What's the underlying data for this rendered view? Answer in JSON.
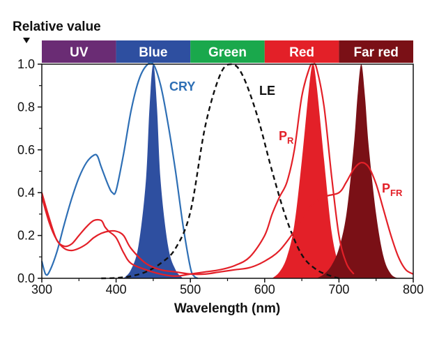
{
  "chart_data": {
    "type": "line",
    "ylabel": "Relative value",
    "xlabel": "Wavelength (nm)",
    "xlim": [
      300,
      800
    ],
    "ylim": [
      0,
      1.0
    ],
    "x_ticks": [
      300,
      400,
      500,
      600,
      700,
      800
    ],
    "y_ticks": [
      "0.0",
      "0.2",
      "0.4",
      "0.6",
      "0.8",
      "1.0"
    ],
    "grid": false,
    "bands": [
      {
        "label": "UV",
        "from": 300,
        "to": 400,
        "color": "#6a2c74"
      },
      {
        "label": "Blue",
        "from": 400,
        "to": 500,
        "color": "#2e4fa0"
      },
      {
        "label": "Green",
        "from": 500,
        "to": 600,
        "color": "#1aa84c"
      },
      {
        "label": "Red",
        "from": 600,
        "to": 700,
        "color": "#e32028"
      },
      {
        "label": "Far red",
        "from": 700,
        "to": 800,
        "color": "#7a1016"
      }
    ],
    "series": [
      {
        "name": "CRY",
        "color": "#2e6fb5",
        "style": "solid",
        "x": [
          300,
          305,
          310,
          320,
          330,
          340,
          350,
          360,
          370,
          375,
          380,
          390,
          395,
          400,
          410,
          420,
          430,
          440,
          450,
          460,
          470,
          480,
          490,
          500,
          505,
          510
        ],
        "y": [
          0.08,
          0.02,
          0.03,
          0.12,
          0.25,
          0.37,
          0.47,
          0.54,
          0.575,
          0.57,
          0.52,
          0.43,
          0.4,
          0.41,
          0.58,
          0.78,
          0.92,
          0.99,
          1.0,
          0.9,
          0.72,
          0.5,
          0.25,
          0.05,
          0.01,
          0.0
        ]
      },
      {
        "name": "LE",
        "color": "#111111",
        "style": "dashed",
        "x": [
          380,
          400,
          420,
          440,
          460,
          480,
          500,
          520,
          540,
          555,
          570,
          590,
          610,
          630,
          650,
          670,
          690,
          700
        ],
        "y": [
          0.0,
          0.002,
          0.01,
          0.03,
          0.07,
          0.14,
          0.31,
          0.71,
          0.95,
          1.0,
          0.95,
          0.76,
          0.5,
          0.27,
          0.11,
          0.04,
          0.01,
          0.0
        ]
      },
      {
        "name": "P_R",
        "label_main": "P",
        "label_sub": "R",
        "color": "#e32028",
        "style": "solid",
        "x": [
          300,
          310,
          320,
          330,
          340,
          350,
          360,
          370,
          380,
          385,
          390,
          400,
          410,
          420,
          440,
          460,
          480,
          500,
          520,
          540,
          560,
          580,
          600,
          610,
          620,
          630,
          640,
          650,
          660,
          665,
          670,
          680,
          690,
          700,
          710,
          720
        ],
        "y": [
          0.4,
          0.28,
          0.18,
          0.15,
          0.16,
          0.2,
          0.24,
          0.27,
          0.27,
          0.24,
          0.22,
          0.19,
          0.12,
          0.07,
          0.04,
          0.02,
          0.01,
          0.02,
          0.03,
          0.04,
          0.06,
          0.1,
          0.2,
          0.3,
          0.38,
          0.45,
          0.6,
          0.85,
          0.98,
          1.0,
          0.98,
          0.8,
          0.48,
          0.2,
          0.07,
          0.02
        ]
      },
      {
        "name": "P_FR",
        "label_main": "P",
        "label_sub": "FR",
        "color": "#e32028",
        "style": "solid",
        "x": [
          300,
          310,
          320,
          330,
          340,
          350,
          360,
          370,
          380,
          390,
          400,
          410,
          420,
          440,
          460,
          480,
          500,
          520,
          540,
          560,
          580,
          600,
          620,
          640,
          660,
          680,
          700,
          710,
          720,
          730,
          740,
          750,
          760,
          770,
          780,
          790,
          800
        ],
        "y": [
          0.38,
          0.26,
          0.18,
          0.14,
          0.13,
          0.14,
          0.16,
          0.19,
          0.21,
          0.22,
          0.22,
          0.2,
          0.14,
          0.07,
          0.04,
          0.03,
          0.02,
          0.02,
          0.03,
          0.04,
          0.05,
          0.08,
          0.13,
          0.22,
          0.33,
          0.38,
          0.4,
          0.45,
          0.51,
          0.54,
          0.52,
          0.44,
          0.32,
          0.2,
          0.1,
          0.04,
          0.02
        ]
      }
    ],
    "filled_peaks": [
      {
        "name": "blue-peak",
        "color": "#2e4fa0",
        "x": [
          410,
          420,
          430,
          440,
          445,
          450,
          455,
          460,
          470,
          480,
          490
        ],
        "y": [
          0.0,
          0.04,
          0.15,
          0.45,
          0.8,
          1.0,
          0.8,
          0.45,
          0.15,
          0.04,
          0.0
        ]
      },
      {
        "name": "red-peak",
        "color": "#e32028",
        "x": [
          610,
          620,
          630,
          640,
          650,
          660,
          665,
          670,
          680,
          690,
          700,
          710
        ],
        "y": [
          0.0,
          0.03,
          0.1,
          0.25,
          0.55,
          0.9,
          1.0,
          0.9,
          0.55,
          0.22,
          0.06,
          0.0
        ]
      },
      {
        "name": "far-red-peak",
        "color": "#7a1016",
        "x": [
          670,
          680,
          690,
          700,
          710,
          720,
          725,
          730,
          735,
          740,
          750,
          760,
          770,
          780
        ],
        "y": [
          0.0,
          0.02,
          0.06,
          0.14,
          0.3,
          0.62,
          0.85,
          1.0,
          0.85,
          0.62,
          0.3,
          0.1,
          0.02,
          0.0
        ]
      }
    ]
  }
}
